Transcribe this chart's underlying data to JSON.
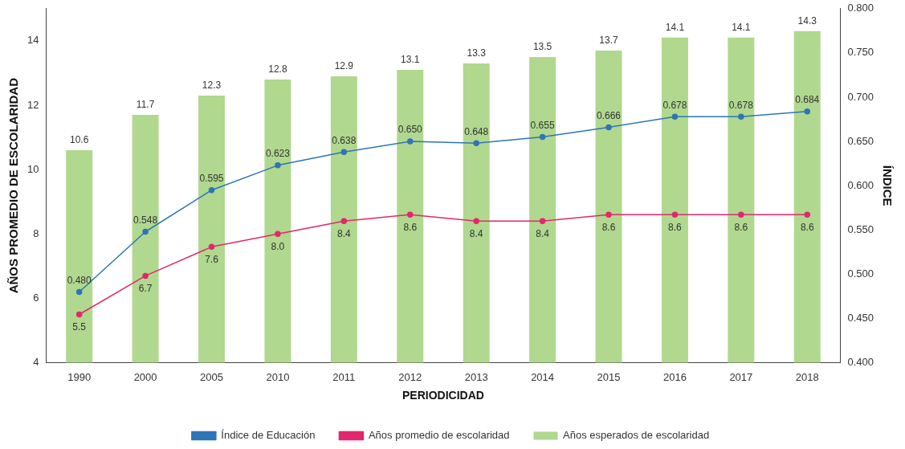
{
  "chart_data": {
    "type": "bar",
    "xlabel": "PERIODICIDAD",
    "ylabel": "AÑOS PROMEDIO DE ESCOLARIDAD",
    "y2label": "ÍNDICE",
    "categories": [
      "1990",
      "2000",
      "2005",
      "2010",
      "2011",
      "2012",
      "2013",
      "2014",
      "2015",
      "2016",
      "2017",
      "2018"
    ],
    "series": [
      {
        "name": "Índice de Educación",
        "type": "line",
        "axis": "y2",
        "color": "#2e75b6",
        "values": [
          0.48,
          0.548,
          0.595,
          0.623,
          0.638,
          0.65,
          0.648,
          0.655,
          0.666,
          0.678,
          0.678,
          0.684
        ],
        "value_labels": [
          "0.480",
          "0.548",
          "0.595",
          "0.623",
          "0.638",
          "0.650",
          "0.648",
          "0.655",
          "0.666",
          "0.678",
          "0.678",
          "0.684"
        ]
      },
      {
        "name": "Años promedio de escolaridad",
        "type": "line",
        "color": "#e2276f",
        "values": [
          5.5,
          6.7,
          7.6,
          8.0,
          8.4,
          8.6,
          8.4,
          8.4,
          8.6,
          8.6,
          8.6,
          8.6
        ],
        "value_labels": [
          "5.5",
          "6.7",
          "7.6",
          "8.0",
          "8.4",
          "8.6",
          "8.4",
          "8.4",
          "8.6",
          "8.6",
          "8.6",
          "8.6"
        ]
      },
      {
        "name": "Años esperados de escolaridad",
        "color": "#b0d88f",
        "values": [
          10.6,
          11.7,
          12.3,
          12.8,
          12.9,
          13.1,
          13.3,
          13.5,
          13.7,
          14.1,
          14.1,
          14.3
        ],
        "value_labels": [
          "10.6",
          "11.7",
          "12.3",
          "12.8",
          "12.9",
          "13.1",
          "13.3",
          "13.5",
          "13.7",
          "14.1",
          "14.1",
          "14.3"
        ]
      }
    ],
    "ylim": [
      4,
      15
    ],
    "yticks": [
      4,
      6,
      8,
      10,
      12,
      14
    ],
    "y2lim": [
      0.4,
      0.8
    ],
    "y2ticks": [
      {
        "value": 0.4,
        "label": "0.400"
      },
      {
        "value": 0.45,
        "label": "0.450"
      },
      {
        "value": 0.5,
        "label": "0.500"
      },
      {
        "value": 0.55,
        "label": "0.550"
      },
      {
        "value": 0.6,
        "label": "0.600"
      },
      {
        "value": 0.65,
        "label": "0.650"
      },
      {
        "value": 0.7,
        "label": "0.700"
      },
      {
        "value": 0.75,
        "label": "0.750"
      },
      {
        "value": 0.8,
        "label": "0.800"
      }
    ],
    "marker": "circle",
    "line_style": "solid",
    "grid": false,
    "legend": "bottom"
  }
}
